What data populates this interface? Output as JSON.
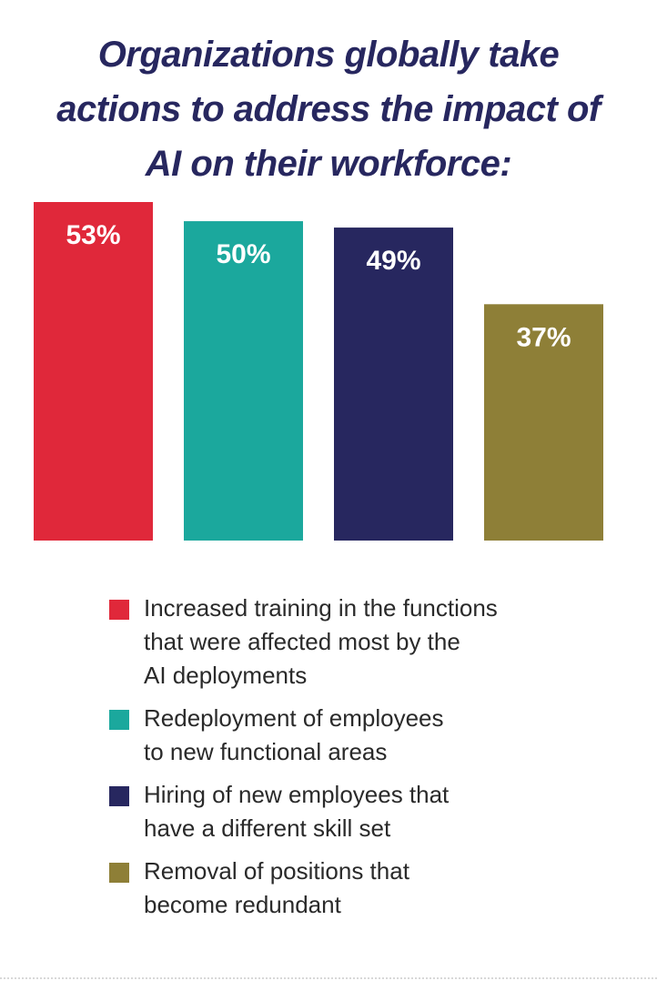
{
  "title_lines": [
    "Organizations globally take",
    "actions to address the impact of",
    "AI on their workforce:"
  ],
  "chart_data": {
    "type": "bar",
    "title": "Organizations globally take actions to address the impact of AI on their workforce:",
    "categories": [
      "Increased training in the functions that were affected most by the AI deployments",
      "Redeployment of employees to new functional areas",
      "Hiring of new employees that have a different skill set",
      "Removal of positions that become redundant"
    ],
    "values": [
      53,
      50,
      49,
      37
    ],
    "value_labels": [
      "53%",
      "50%",
      "49%",
      "37%"
    ],
    "colors": [
      "#e0283a",
      "#1ba89d",
      "#27275f",
      "#8e7f37"
    ],
    "ylim": [
      0,
      53
    ],
    "grid": false,
    "legend_position": "bottom"
  },
  "legend": [
    {
      "lines": [
        "Increased training in the functions",
        "that were affected most by the",
        "AI deployments"
      ],
      "color": "#e0283a"
    },
    {
      "lines": [
        "Redeployment of employees",
        "to new functional areas"
      ],
      "color": "#1ba89d"
    },
    {
      "lines": [
        "Hiring of new employees that",
        "have a different skill set"
      ],
      "color": "#27275f"
    },
    {
      "lines": [
        "Removal of positions that",
        "become redundant"
      ],
      "color": "#8e7f37"
    }
  ]
}
